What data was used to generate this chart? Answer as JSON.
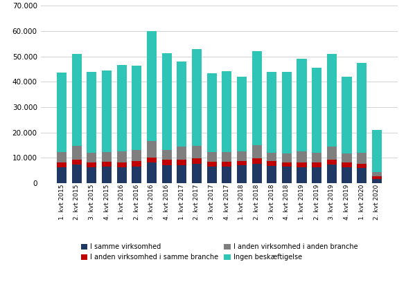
{
  "categories": [
    "1. kvt 2015",
    "2. kvt 2015",
    "3. kvt 2015",
    "4. kvt 2015",
    "1. kvt 2016",
    "2. kvt 2016",
    "3. kvt 2016",
    "4. kvt 2016",
    "1. kvt 2017",
    "2. kvt 2017",
    "3. kvt 2017",
    "4. kvt 2017",
    "1. kvt 2018",
    "2. kvt 2018",
    "3. kvt 2018",
    "4. kvt 2018",
    "1. kvt 2019",
    "2. kvt 2019",
    "3. kvt 2019",
    "4. kvt 2019",
    "1. kvt 2020",
    "2. kvt 2020"
  ],
  "samme_virksomhed": [
    6200,
    7300,
    6300,
    6600,
    6400,
    6700,
    8100,
    7200,
    7200,
    7700,
    6700,
    6600,
    7000,
    7700,
    6900,
    6500,
    6400,
    6300,
    7500,
    6300,
    6100,
    1800
  ],
  "anden_virksomhed_samme_branche": [
    2000,
    2100,
    1900,
    2000,
    1900,
    2100,
    2100,
    2000,
    2000,
    2100,
    1900,
    1900,
    1900,
    2100,
    1800,
    1800,
    1800,
    1800,
    1900,
    1800,
    1700,
    1100
  ],
  "anden_virksomhed_anden_branche": [
    4200,
    5300,
    3800,
    3700,
    4200,
    4400,
    6400,
    4000,
    5300,
    5000,
    3700,
    3800,
    3800,
    5100,
    3400,
    3500,
    4300,
    3900,
    5000,
    3700,
    4200,
    1400
  ],
  "ingen_beskaeftigelse": [
    31100,
    36300,
    32000,
    32200,
    34000,
    33200,
    43400,
    38000,
    33500,
    38200,
    31100,
    32000,
    29300,
    37100,
    31900,
    32200,
    36500,
    33500,
    36600,
    30300,
    35500,
    16700
  ],
  "colors": {
    "samme_virksomhed": "#1f3864",
    "anden_virksomhed_samme_branche": "#c00000",
    "anden_virksomhed_anden_branche": "#7f7f7f",
    "ingen_beskaeftigelse": "#2ec4b6"
  },
  "legend_labels": [
    "I samme virksomhed",
    "I anden virksomhed i samme branche",
    "I anden virksomhed i anden branche",
    "Ingen beskæftigelse"
  ],
  "ylim": [
    0,
    70000
  ],
  "yticks": [
    0,
    10000,
    20000,
    30000,
    40000,
    50000,
    60000,
    70000
  ],
  "background_color": "#ffffff",
  "grid_color": "#d3d3d3"
}
